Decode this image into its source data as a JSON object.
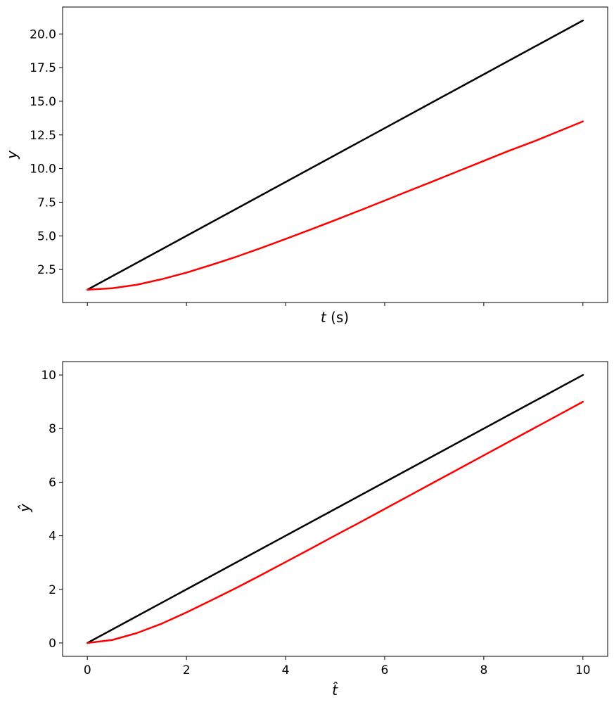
{
  "chart_data": [
    {
      "type": "line",
      "xlabel": "t (s)",
      "xlabel_var": "t",
      "xlabel_unit": " (s)",
      "ylabel": "y",
      "xlim": [
        -0.5,
        10.5
      ],
      "ylim": [
        0.05,
        22.0
      ],
      "xticks": [
        0,
        2,
        4,
        6,
        8,
        10
      ],
      "xticklabels_shown": false,
      "yticks": [
        2.5,
        5.0,
        7.5,
        10.0,
        12.5,
        15.0,
        17.5,
        20.0
      ],
      "yticklabels": [
        "2.5",
        "5.0",
        "7.5",
        "10.0",
        "12.5",
        "15.0",
        "17.5",
        "20.0"
      ],
      "grid": false,
      "series": [
        {
          "color": "#000000",
          "x": [
            0,
            10
          ],
          "y": [
            1.0,
            21.0
          ]
        },
        {
          "color": "#ff0000",
          "x": [
            0,
            0.5,
            1,
            1.5,
            2,
            2.5,
            3,
            3.5,
            4,
            4.5,
            5,
            5.5,
            6,
            6.5,
            7,
            7.5,
            8,
            8.5,
            9,
            9.5,
            10
          ],
          "y": [
            1.0,
            1.11,
            1.37,
            1.78,
            2.27,
            2.84,
            3.44,
            4.09,
            4.77,
            5.46,
            6.17,
            6.89,
            7.62,
            8.36,
            9.09,
            9.83,
            10.57,
            11.31,
            12.0,
            12.75,
            13.5
          ]
        }
      ]
    },
    {
      "type": "line",
      "xlabel": "t̂",
      "ylabel": "ŷ",
      "xlim": [
        -0.5,
        10.5
      ],
      "ylim": [
        -0.5,
        10.5
      ],
      "xticks": [
        0,
        2,
        4,
        6,
        8,
        10
      ],
      "xticklabels": [
        "0",
        "2",
        "4",
        "6",
        "8",
        "10"
      ],
      "yticks": [
        0,
        2,
        4,
        6,
        8,
        10
      ],
      "yticklabels": [
        "0",
        "2",
        "4",
        "6",
        "8",
        "10"
      ],
      "grid": false,
      "series": [
        {
          "color": "#000000",
          "x": [
            0,
            10
          ],
          "y": [
            0,
            10
          ]
        },
        {
          "color": "#ff0000",
          "x": [
            0,
            0.5,
            1,
            1.5,
            2,
            2.5,
            3,
            3.5,
            4,
            4.5,
            5,
            5.5,
            6,
            6.5,
            7,
            7.5,
            8,
            8.5,
            9,
            9.5,
            10
          ],
          "y": [
            0,
            0.11,
            0.37,
            0.72,
            1.14,
            1.59,
            2.05,
            2.53,
            3.02,
            3.51,
            4.01,
            4.5,
            5.0,
            5.5,
            6.0,
            6.5,
            7.0,
            7.5,
            8.0,
            8.5,
            9.0
          ]
        }
      ]
    }
  ]
}
